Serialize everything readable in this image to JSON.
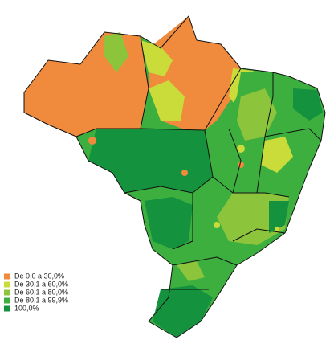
{
  "legend": {
    "items": [
      {
        "label": "De 0,0 a 30,0%",
        "color": "#f08a3c"
      },
      {
        "label": "De 30,1 a 60,0%",
        "color": "#c9dc3a"
      },
      {
        "label": "De 60,1 a 80,0%",
        "color": "#8cc43c"
      },
      {
        "label": "De 80,1 a 99,9%",
        "color": "#3daf3f"
      },
      {
        "label": "100,0%",
        "color": "#15923e"
      }
    ]
  }
}
